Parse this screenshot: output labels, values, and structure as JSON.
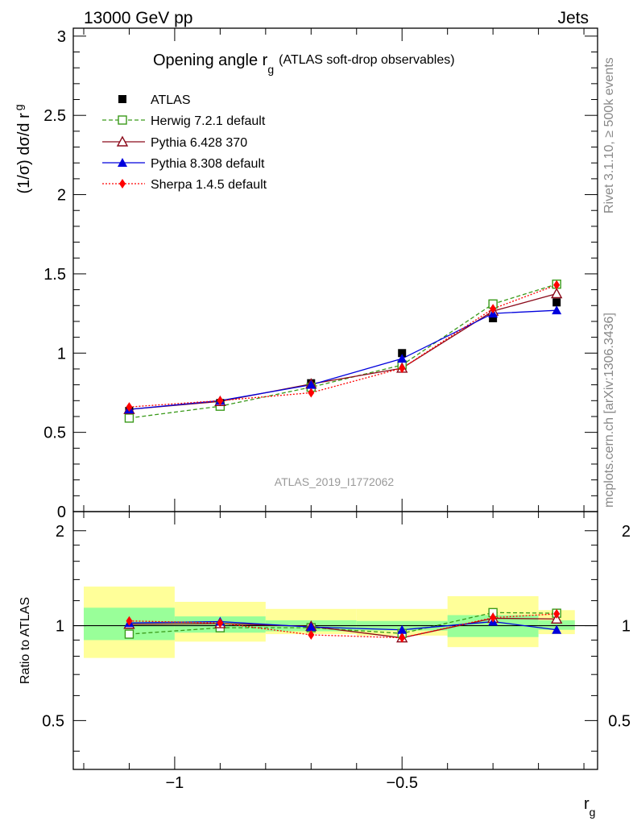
{
  "header": {
    "left": "13000 GeV pp",
    "right": "Jets"
  },
  "side_labels": {
    "rivet": "Rivet 3.1.10, ≥ 500k events",
    "mcplots": "mcplots.cern.ch [arXiv:1306.3436]"
  },
  "main_plot": {
    "title_main": "Opening angle r",
    "title_sub": "g",
    "title_rest": "(ATLAS soft-drop observables)",
    "ylabel_main": "(1/σ) dσ/d r",
    "ylabel_sub": "g",
    "watermark": "ATLAS_2019_I1772062",
    "y_ticks": [
      "0",
      "0.5",
      "1",
      "1.5",
      "2",
      "2.5",
      "3"
    ]
  },
  "ratio_plot": {
    "ylabel": "Ratio to ATLAS",
    "y_ticks": [
      "0.5",
      "1",
      "2"
    ]
  },
  "x_axis": {
    "label_main": "r",
    "label_sub": "g",
    "ticks": [
      "−1",
      "−0.5"
    ]
  },
  "colors": {
    "atlas": "#000000",
    "herwig": "#3a9a1a",
    "pythia6": "#8b0a1a",
    "pythia8": "#0000dd",
    "sherpa": "#ff0000",
    "band_inner": "#99ff99",
    "band_outer": "#ffff99"
  },
  "chart_data": [
    {
      "type": "line",
      "title": "Opening angle r_g (ATLAS soft-drop observables)",
      "xlabel": "r_g",
      "ylabel": "(1/σ) dσ/d r_g",
      "xlim": [
        -1.223,
        -0.07
      ],
      "ylim": [
        0,
        3.05
      ],
      "bins": [
        [
          -1.2,
          -1.0
        ],
        [
          -1.0,
          -0.8
        ],
        [
          -0.8,
          -0.6
        ],
        [
          -0.6,
          -0.4
        ],
        [
          -0.4,
          -0.2
        ],
        [
          -0.2,
          -0.12
        ]
      ],
      "x": [
        -1.1,
        -0.9,
        -0.7,
        -0.5,
        -0.3,
        -0.16
      ],
      "series": [
        {
          "key": "atlas",
          "name": "ATLAS",
          "values": [
            0.635,
            0.685,
            0.81,
            1.0,
            1.22,
            1.32
          ]
        },
        {
          "key": "herwig",
          "name": "Herwig 7.2.1 default",
          "values": [
            0.59,
            0.665,
            0.785,
            0.925,
            1.31,
            1.435
          ]
        },
        {
          "key": "pythia6",
          "name": "Pythia 6.428 370",
          "values": [
            0.645,
            0.695,
            0.805,
            0.905,
            1.265,
            1.375
          ]
        },
        {
          "key": "pythia8",
          "name": "Pythia 8.308 default",
          "values": [
            0.645,
            0.7,
            0.8,
            0.965,
            1.25,
            1.27
          ]
        },
        {
          "key": "sherpa",
          "name": "Sherpa 1.4.5 default",
          "values": [
            0.66,
            0.7,
            0.75,
            0.905,
            1.28,
            1.43
          ]
        }
      ]
    },
    {
      "type": "line",
      "title": "Ratio to ATLAS",
      "xlabel": "r_g",
      "ylabel": "Ratio to ATLAS",
      "xlim": [
        -1.223,
        -0.07
      ],
      "ylim": [
        0.35,
        2.3
      ],
      "x": [
        -1.1,
        -0.9,
        -0.7,
        -0.5,
        -0.3,
        -0.16
      ],
      "band_inner": [
        [
          0.9,
          1.14
        ],
        [
          0.95,
          1.07
        ],
        [
          0.96,
          1.04
        ],
        [
          0.965,
          1.035
        ],
        [
          0.92,
          1.08
        ],
        [
          0.97,
          1.04
        ]
      ],
      "band_outer": [
        [
          0.79,
          1.33
        ],
        [
          0.89,
          1.19
        ],
        [
          0.94,
          1.13
        ],
        [
          0.93,
          1.13
        ],
        [
          0.855,
          1.24
        ],
        [
          0.94,
          1.12
        ]
      ],
      "series": [
        {
          "key": "herwig",
          "name": "Herwig 7.2.1 default",
          "values": [
            0.94,
            0.985,
            0.985,
            0.945,
            1.1,
            1.095
          ]
        },
        {
          "key": "pythia6",
          "name": "Pythia 6.428 370",
          "values": [
            1.01,
            1.015,
            0.995,
            0.915,
            1.055,
            1.05
          ]
        },
        {
          "key": "pythia8",
          "name": "Pythia 8.308 default",
          "values": [
            1.02,
            1.03,
            0.99,
            0.97,
            1.03,
            0.97
          ]
        },
        {
          "key": "sherpa",
          "name": "Sherpa 1.4.5 default",
          "values": [
            1.035,
            1.02,
            0.935,
            0.915,
            1.06,
            1.09
          ]
        }
      ]
    }
  ]
}
